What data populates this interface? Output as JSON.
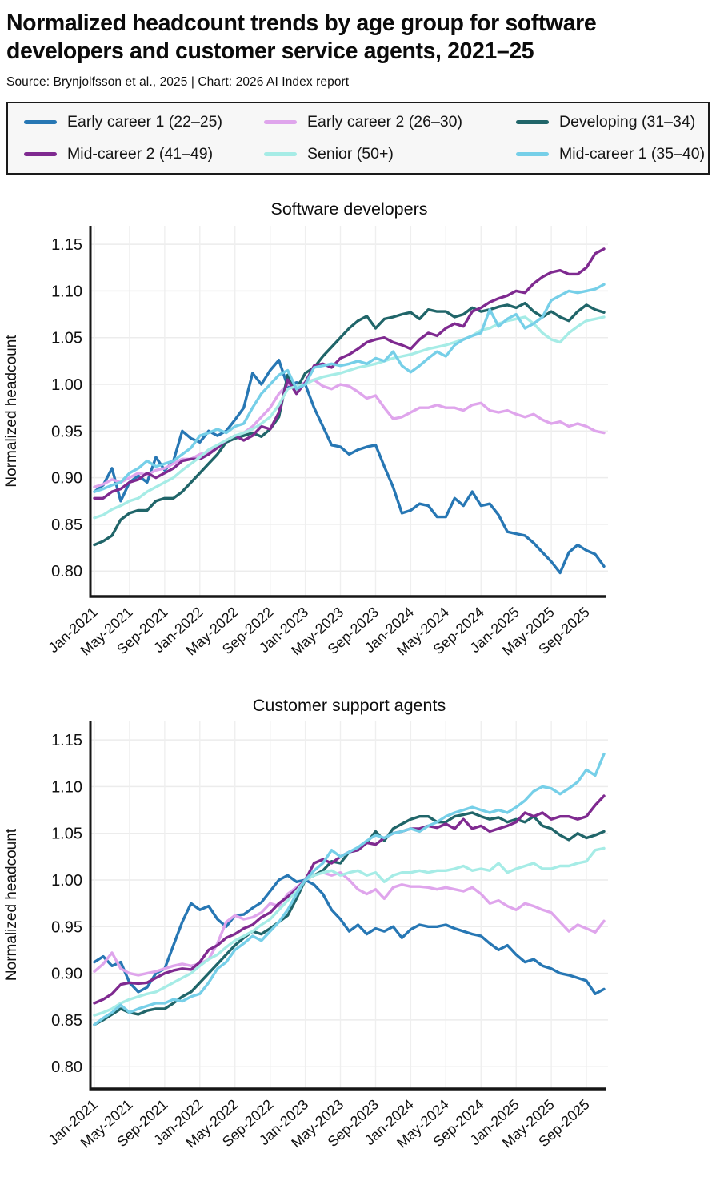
{
  "page": {
    "title": "Normalized headcount trends by age group for software developers and customer service agents, 2021–25",
    "source": "Source: Brynjolfsson et al., 2025 | Chart: 2026 AI Index report"
  },
  "legend": {
    "items": [
      {
        "label": "Early career 1 (22–25)",
        "color": "#2777b4"
      },
      {
        "label": "Early career 2 (26–30)",
        "color": "#dfa5ec"
      },
      {
        "label": "Developing (31–34)",
        "color": "#206569"
      },
      {
        "label": "Mid-career 2 (41–49)",
        "color": "#7f2a90"
      },
      {
        "label": "Senior (50+)",
        "color": "#a6ece6"
      },
      {
        "label": "Mid-career 1 (35–40)",
        "color": "#76cfe8"
      }
    ]
  },
  "chart_data": [
    {
      "type": "line",
      "title": "Software developers",
      "ylabel": "Normalized headcount",
      "ylim": [
        0.78,
        1.17
      ],
      "yticks": [
        0.8,
        0.85,
        0.9,
        0.95,
        1.0,
        1.05,
        1.1,
        1.15
      ],
      "grid": true,
      "x_unit": "month",
      "x_range": [
        "Jan-2021",
        "Nov-2025"
      ],
      "x_tick_labels": [
        "Jan-2021",
        "May-2021",
        "Sep-2021",
        "Jan-2022",
        "May-2022",
        "Sep-2022",
        "Jan-2023",
        "May-2023",
        "Sep-2023",
        "Jan-2024",
        "May-2024",
        "Sep-2024",
        "Jan-2025",
        "May-2025",
        "Sep-2025"
      ],
      "series": [
        {
          "name": "Early career 1 (22–25)",
          "color": "#2777b4",
          "values": [
            0.885,
            0.892,
            0.91,
            0.875,
            0.895,
            0.902,
            0.895,
            0.922,
            0.908,
            0.918,
            0.95,
            0.942,
            0.938,
            0.95,
            0.945,
            0.95,
            0.962,
            0.975,
            1.012,
            1.0,
            1.015,
            1.026,
            0.998,
            1.002,
            1.0,
            0.975,
            0.955,
            0.935,
            0.933,
            0.925,
            0.93,
            0.933,
            0.935,
            0.912,
            0.89,
            0.862,
            0.865,
            0.872,
            0.87,
            0.858,
            0.858,
            0.878,
            0.87,
            0.885,
            0.87,
            0.872,
            0.86,
            0.842,
            0.84,
            0.838,
            0.83,
            0.82,
            0.81,
            0.798,
            0.82,
            0.828,
            0.822,
            0.818,
            0.805
          ]
        },
        {
          "name": "Early career 2 (26–30)",
          "color": "#dfa5ec",
          "values": [
            0.89,
            0.893,
            0.898,
            0.895,
            0.9,
            0.905,
            0.903,
            0.908,
            0.91,
            0.915,
            0.92,
            0.92,
            0.925,
            0.928,
            0.932,
            0.938,
            0.942,
            0.948,
            0.955,
            0.965,
            0.975,
            0.99,
            1.0,
            0.998,
            1.002,
            1.005,
            0.998,
            0.995,
            1.0,
            0.998,
            0.992,
            0.985,
            0.988,
            0.975,
            0.963,
            0.965,
            0.97,
            0.975,
            0.975,
            0.978,
            0.975,
            0.975,
            0.972,
            0.978,
            0.98,
            0.972,
            0.97,
            0.972,
            0.968,
            0.965,
            0.968,
            0.962,
            0.958,
            0.96,
            0.955,
            0.958,
            0.955,
            0.95,
            0.948
          ]
        },
        {
          "name": "Developing (31–34)",
          "color": "#206569",
          "values": [
            0.828,
            0.832,
            0.838,
            0.855,
            0.862,
            0.865,
            0.865,
            0.875,
            0.878,
            0.878,
            0.885,
            0.895,
            0.905,
            0.915,
            0.925,
            0.938,
            0.942,
            0.945,
            0.948,
            0.944,
            0.952,
            0.965,
            1.01,
            0.995,
            1.012,
            1.018,
            1.03,
            1.04,
            1.05,
            1.06,
            1.068,
            1.073,
            1.06,
            1.07,
            1.072,
            1.075,
            1.077,
            1.07,
            1.08,
            1.078,
            1.078,
            1.072,
            1.075,
            1.082,
            1.078,
            1.08,
            1.083,
            1.085,
            1.082,
            1.087,
            1.078,
            1.072,
            1.078,
            1.072,
            1.068,
            1.078,
            1.085,
            1.08,
            1.077
          ]
        },
        {
          "name": "Mid-career 2 (41–49)",
          "color": "#7f2a90",
          "values": [
            0.878,
            0.878,
            0.885,
            0.888,
            0.895,
            0.898,
            0.905,
            0.9,
            0.905,
            0.91,
            0.918,
            0.92,
            0.92,
            0.925,
            0.932,
            0.94,
            0.945,
            0.94,
            0.945,
            0.955,
            0.952,
            0.97,
            1.005,
            0.99,
            1.002,
            1.02,
            1.022,
            1.018,
            1.028,
            1.032,
            1.038,
            1.045,
            1.048,
            1.05,
            1.045,
            1.042,
            1.038,
            1.048,
            1.055,
            1.052,
            1.06,
            1.065,
            1.062,
            1.078,
            1.082,
            1.088,
            1.092,
            1.095,
            1.1,
            1.098,
            1.108,
            1.115,
            1.12,
            1.122,
            1.118,
            1.118,
            1.125,
            1.14,
            1.145
          ]
        },
        {
          "name": "Senior (50+)",
          "color": "#a6ece6",
          "values": [
            0.857,
            0.86,
            0.866,
            0.87,
            0.875,
            0.878,
            0.885,
            0.89,
            0.895,
            0.9,
            0.908,
            0.915,
            0.922,
            0.93,
            0.935,
            0.94,
            0.945,
            0.948,
            0.952,
            0.958,
            0.965,
            0.978,
            0.995,
            0.998,
            1.0,
            1.005,
            1.008,
            1.01,
            1.012,
            1.015,
            1.018,
            1.02,
            1.022,
            1.025,
            1.028,
            1.03,
            1.032,
            1.035,
            1.038,
            1.04,
            1.042,
            1.045,
            1.048,
            1.052,
            1.058,
            1.06,
            1.065,
            1.068,
            1.07,
            1.072,
            1.065,
            1.055,
            1.048,
            1.045,
            1.055,
            1.062,
            1.068,
            1.07,
            1.072
          ]
        },
        {
          "name": "Mid-career 1 (35–40)",
          "color": "#76cfe8",
          "values": [
            0.885,
            0.888,
            0.892,
            0.895,
            0.905,
            0.91,
            0.918,
            0.912,
            0.915,
            0.918,
            0.925,
            0.932,
            0.945,
            0.948,
            0.952,
            0.948,
            0.955,
            0.958,
            0.975,
            0.99,
            1.0,
            1.01,
            1.015,
            0.995,
            1.0,
            1.018,
            1.02,
            1.022,
            1.02,
            1.022,
            1.025,
            1.022,
            1.028,
            1.025,
            1.035,
            1.02,
            1.013,
            1.02,
            1.028,
            1.035,
            1.03,
            1.042,
            1.048,
            1.052,
            1.055,
            1.08,
            1.062,
            1.07,
            1.075,
            1.06,
            1.065,
            1.072,
            1.09,
            1.095,
            1.1,
            1.098,
            1.1,
            1.102,
            1.107
          ]
        }
      ]
    },
    {
      "type": "line",
      "title": "Customer support agents",
      "ylabel": "Normalized headcount",
      "ylim": [
        0.78,
        1.17
      ],
      "yticks": [
        0.8,
        0.85,
        0.9,
        0.95,
        1.0,
        1.05,
        1.1,
        1.15
      ],
      "grid": true,
      "x_unit": "month",
      "x_range": [
        "Jan-2021",
        "Nov-2025"
      ],
      "x_tick_labels": [
        "Jan-2021",
        "May-2021",
        "Sep-2021",
        "Jan-2022",
        "May-2022",
        "Sep-2022",
        "Jan-2023",
        "May-2023",
        "Sep-2023",
        "Jan-2024",
        "May-2024",
        "Sep-2024",
        "Jan-2025",
        "May-2025",
        "Sep-2025"
      ],
      "series": [
        {
          "name": "Early career 1 (22–25)",
          "color": "#2777b4",
          "values": [
            0.912,
            0.918,
            0.908,
            0.912,
            0.89,
            0.88,
            0.885,
            0.9,
            0.905,
            0.93,
            0.955,
            0.975,
            0.968,
            0.972,
            0.958,
            0.95,
            0.962,
            0.963,
            0.97,
            0.976,
            0.988,
            1.0,
            1.005,
            0.998,
            1.0,
            0.995,
            0.985,
            0.968,
            0.958,
            0.945,
            0.952,
            0.942,
            0.948,
            0.945,
            0.95,
            0.938,
            0.947,
            0.952,
            0.95,
            0.95,
            0.952,
            0.948,
            0.945,
            0.942,
            0.94,
            0.932,
            0.925,
            0.93,
            0.92,
            0.912,
            0.915,
            0.908,
            0.905,
            0.9,
            0.898,
            0.895,
            0.892,
            0.878,
            0.883
          ]
        },
        {
          "name": "Early career 2 (26–30)",
          "color": "#dfa5ec",
          "values": [
            0.902,
            0.91,
            0.922,
            0.905,
            0.9,
            0.898,
            0.9,
            0.902,
            0.905,
            0.908,
            0.91,
            0.908,
            0.91,
            0.915,
            0.932,
            0.955,
            0.962,
            0.958,
            0.96,
            0.965,
            0.975,
            0.972,
            0.985,
            0.992,
            1.0,
            1.005,
            1.008,
            1.005,
            1.008,
            1.0,
            0.99,
            0.985,
            0.99,
            0.98,
            0.992,
            0.995,
            0.993,
            0.993,
            0.992,
            0.99,
            0.992,
            0.99,
            0.988,
            0.992,
            0.985,
            0.975,
            0.978,
            0.972,
            0.968,
            0.975,
            0.972,
            0.968,
            0.965,
            0.955,
            0.945,
            0.952,
            0.948,
            0.944,
            0.956
          ]
        },
        {
          "name": "Developing (31–34)",
          "color": "#206569",
          "values": [
            0.845,
            0.85,
            0.856,
            0.862,
            0.858,
            0.856,
            0.86,
            0.862,
            0.862,
            0.868,
            0.875,
            0.88,
            0.89,
            0.9,
            0.91,
            0.92,
            0.93,
            0.938,
            0.945,
            0.942,
            0.948,
            0.955,
            0.962,
            0.98,
            1.0,
            1.005,
            1.01,
            1.02,
            1.018,
            1.03,
            1.032,
            1.04,
            1.052,
            1.042,
            1.055,
            1.06,
            1.065,
            1.068,
            1.068,
            1.062,
            1.062,
            1.068,
            1.07,
            1.072,
            1.068,
            1.065,
            1.067,
            1.062,
            1.065,
            1.062,
            1.068,
            1.058,
            1.055,
            1.048,
            1.043,
            1.05,
            1.045,
            1.048,
            1.052
          ]
        },
        {
          "name": "Mid-career 2 (41–49)",
          "color": "#7f2a90",
          "values": [
            0.868,
            0.872,
            0.878,
            0.888,
            0.89,
            0.889,
            0.89,
            0.895,
            0.9,
            0.903,
            0.905,
            0.904,
            0.912,
            0.925,
            0.93,
            0.938,
            0.942,
            0.948,
            0.952,
            0.96,
            0.965,
            0.975,
            0.982,
            0.99,
            1.0,
            1.018,
            1.022,
            1.018,
            1.025,
            1.03,
            1.032,
            1.04,
            1.038,
            1.045,
            1.05,
            1.052,
            1.055,
            1.055,
            1.058,
            1.056,
            1.06,
            1.055,
            1.065,
            1.055,
            1.058,
            1.052,
            1.055,
            1.058,
            1.062,
            1.072,
            1.068,
            1.072,
            1.065,
            1.068,
            1.068,
            1.065,
            1.068,
            1.08,
            1.09
          ]
        },
        {
          "name": "Senior (50+)",
          "color": "#a6ece6",
          "values": [
            0.855,
            0.858,
            0.862,
            0.868,
            0.872,
            0.875,
            0.878,
            0.88,
            0.885,
            0.89,
            0.895,
            0.9,
            0.908,
            0.915,
            0.92,
            0.928,
            0.935,
            0.94,
            0.945,
            0.952,
            0.958,
            0.968,
            0.978,
            0.988,
            1.0,
            1.005,
            1.008,
            1.01,
            1.005,
            1.008,
            1.01,
            1.005,
            1.008,
            0.998,
            1.005,
            1.008,
            1.008,
            1.01,
            1.008,
            1.01,
            1.01,
            1.012,
            1.015,
            1.01,
            1.012,
            1.01,
            1.018,
            1.008,
            1.012,
            1.015,
            1.018,
            1.012,
            1.012,
            1.015,
            1.015,
            1.018,
            1.02,
            1.032,
            1.034
          ]
        },
        {
          "name": "Mid-career 1 (35–40)",
          "color": "#76cfe8",
          "values": [
            0.845,
            0.852,
            0.858,
            0.866,
            0.858,
            0.862,
            0.865,
            0.868,
            0.868,
            0.872,
            0.87,
            0.875,
            0.878,
            0.89,
            0.905,
            0.912,
            0.925,
            0.932,
            0.94,
            0.935,
            0.945,
            0.955,
            0.968,
            0.985,
            1.0,
            1.01,
            1.018,
            1.032,
            1.025,
            1.03,
            1.035,
            1.042,
            1.048,
            1.045,
            1.05,
            1.052,
            1.055,
            1.052,
            1.058,
            1.062,
            1.068,
            1.072,
            1.075,
            1.078,
            1.075,
            1.072,
            1.075,
            1.072,
            1.078,
            1.085,
            1.095,
            1.1,
            1.098,
            1.092,
            1.098,
            1.105,
            1.118,
            1.112,
            1.135
          ]
        }
      ]
    }
  ]
}
